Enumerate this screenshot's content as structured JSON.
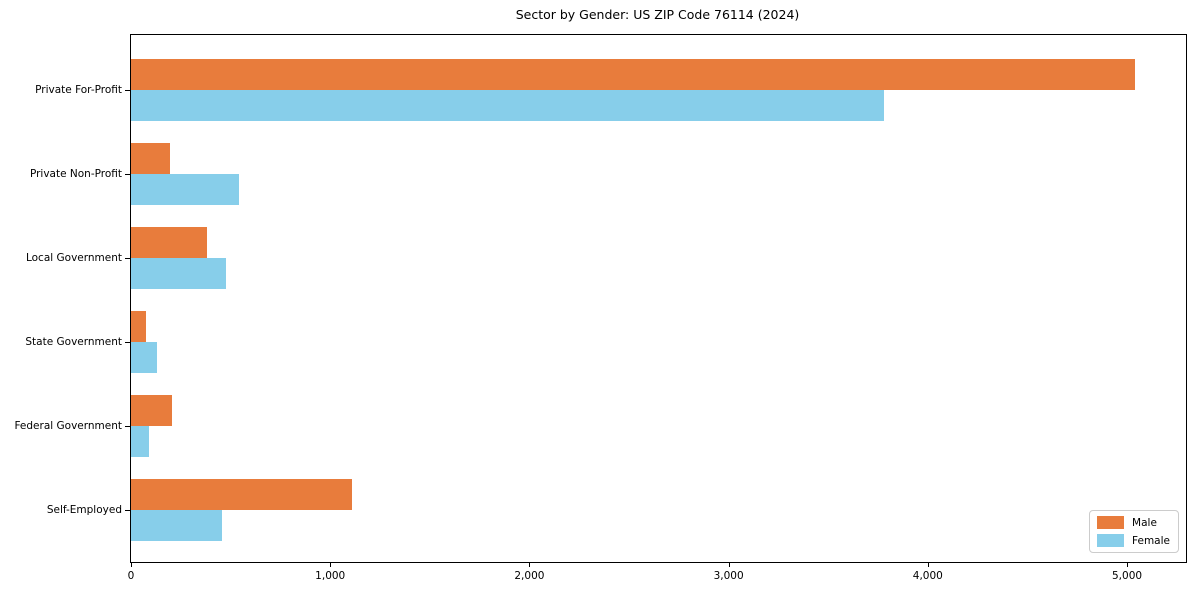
{
  "chart_data": {
    "type": "bar",
    "orientation": "horizontal",
    "title": "Sector by Gender: US ZIP Code 76114 (2024)",
    "categories": [
      "Private For-Profit",
      "Private Non-Profit",
      "Local Government",
      "State Government",
      "Federal Government",
      "Self-Employed"
    ],
    "series": [
      {
        "name": "Male",
        "color": "#e87c3c",
        "values": [
          5040,
          195,
          380,
          75,
          205,
          1110
        ]
      },
      {
        "name": "Female",
        "color": "#87ceea",
        "values": [
          3780,
          540,
          475,
          132,
          90,
          455
        ]
      }
    ],
    "xlabel": "",
    "ylabel": "",
    "xlim": [
      0,
      5296
    ],
    "xticks": [
      0,
      1000,
      2000,
      3000,
      4000,
      5000
    ],
    "xtick_labels": [
      "0",
      "1,000",
      "2,000",
      "3,000",
      "4,000",
      "5,000"
    ],
    "grid": false,
    "legend": {
      "position": "lower right"
    }
  }
}
